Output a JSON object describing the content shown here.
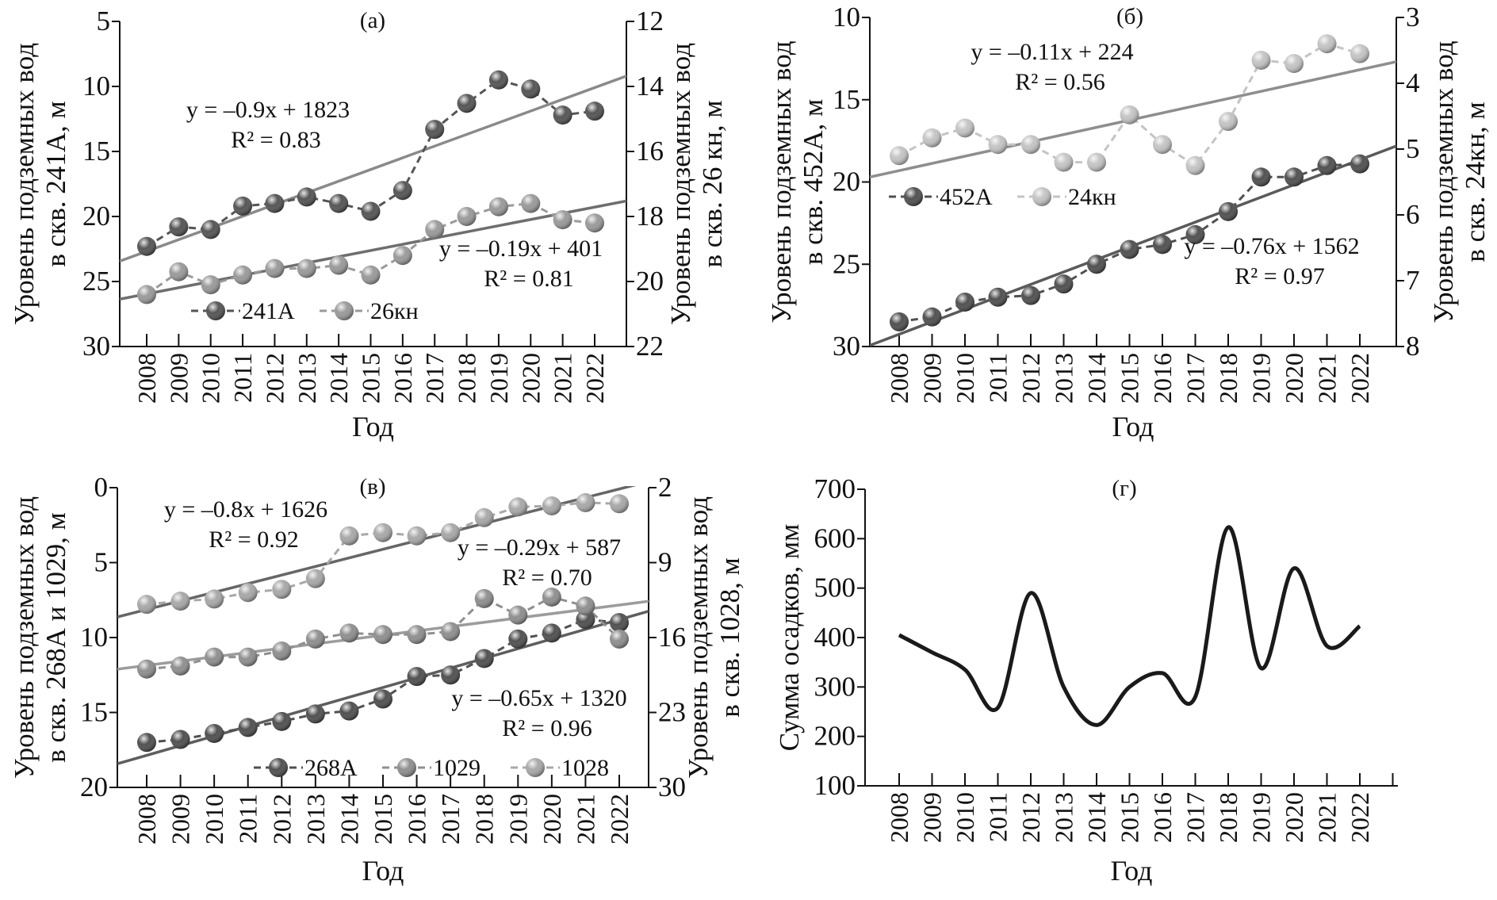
{
  "chart_data": [
    {
      "type": "line",
      "title": "(а)",
      "xlabel": "Год",
      "x": [
        2008,
        2009,
        2010,
        2011,
        2012,
        2013,
        2014,
        2015,
        2016,
        2017,
        2018,
        2019,
        2020,
        2021,
        2022
      ],
      "ylabel_left": [
        "Уровень подземных вод",
        "в скв. 241А, м"
      ],
      "ylabel_right": [
        "Уровень подземных вод",
        "в скв. 26 кн, м"
      ],
      "ylim_left": [
        5,
        30
      ],
      "yticks_left": [
        5,
        10,
        15,
        20,
        25,
        30
      ],
      "y_inverted": true,
      "ylim_right": [
        12,
        22
      ],
      "yticks_right": [
        12,
        14,
        16,
        18,
        20,
        22
      ],
      "series": [
        {
          "name": "241А",
          "axis": "left",
          "color": "#555555",
          "trend_color": "#8a8a8a",
          "values": [
            22.3,
            20.8,
            21.0,
            19.2,
            19.0,
            18.5,
            19.0,
            19.6,
            18.0,
            13.3,
            11.3,
            9.5,
            10.2,
            12.2,
            11.9
          ]
        },
        {
          "name": "26кн",
          "axis": "right",
          "color": "#9a9a9a",
          "trend_color": "#6e6e6e",
          "values": [
            20.4,
            19.7,
            20.1,
            19.8,
            19.6,
            19.6,
            19.5,
            19.8,
            19.2,
            18.4,
            18.0,
            17.7,
            17.6,
            18.1,
            18.2
          ]
        }
      ],
      "annotations": [
        {
          "eq": "y = –0.9x + 1823",
          "r2": "R² = 0.83"
        },
        {
          "eq": "y = –0.19x + 401",
          "r2": "R² = 0.81"
        }
      ],
      "legend": "bottom-left"
    },
    {
      "type": "line",
      "title": "(б)",
      "xlabel": "Год",
      "x": [
        2008,
        2009,
        2010,
        2011,
        2012,
        2013,
        2014,
        2015,
        2016,
        2017,
        2018,
        2019,
        2020,
        2021,
        2022
      ],
      "ylabel_left": [
        "Уровень подземных вод",
        "в скв. 452А, м"
      ],
      "ylabel_right": [
        "Уровень подземных вод",
        "в скв. 24кн, м"
      ],
      "ylim_left": [
        10,
        30
      ],
      "yticks_left": [
        10,
        15,
        20,
        25,
        30
      ],
      "y_inverted": true,
      "ylim_right": [
        3,
        8
      ],
      "yticks_right": [
        3,
        4,
        5,
        6,
        7,
        8
      ],
      "series": [
        {
          "name": "452А",
          "axis": "left",
          "color": "#505050",
          "trend_color": "#5a5a5a",
          "values": [
            28.5,
            28.2,
            27.3,
            27.0,
            26.9,
            26.2,
            25.0,
            24.1,
            23.8,
            23.2,
            21.8,
            19.7,
            19.7,
            19.0,
            18.9
          ]
        },
        {
          "name": "24кн",
          "axis": "right",
          "color": "#c4c4c4",
          "trend_color": "#8e8e8e",
          "values": [
            5.1,
            4.83,
            4.68,
            4.93,
            4.93,
            5.2,
            5.2,
            4.48,
            4.93,
            5.25,
            4.58,
            3.65,
            3.7,
            3.4,
            3.55
          ]
        }
      ],
      "annotations": [
        {
          "eq": "y = –0.76x + 1562",
          "r2": "R² = 0.97"
        },
        {
          "eq": "y = –0.11x + 224",
          "r2": "R² = 0.56"
        }
      ],
      "legend": "middle-left"
    },
    {
      "type": "line",
      "title": "(в)",
      "xlabel": "Год",
      "x": [
        2008,
        2009,
        2010,
        2011,
        2012,
        2013,
        2014,
        2015,
        2016,
        2017,
        2018,
        2019,
        2020,
        2021,
        2022
      ],
      "ylabel_left": [
        "Уровень подземных вод",
        "в скв. 268А и 1029, м"
      ],
      "ylabel_right": [
        "Уровень подземных вод",
        "в скв. 1028, м"
      ],
      "ylim_left": [
        0,
        20
      ],
      "yticks_left": [
        0,
        5,
        10,
        15,
        20
      ],
      "y_inverted": true,
      "ylim_right": [
        2,
        30
      ],
      "yticks_right": [
        2,
        9,
        16,
        23,
        30
      ],
      "series": [
        {
          "name": "268А",
          "axis": "left",
          "color": "#505050",
          "trend_color": "#5e5e5e",
          "values": [
            17.0,
            16.8,
            16.4,
            16.0,
            15.6,
            15.1,
            14.9,
            14.1,
            12.6,
            12.5,
            11.4,
            10.1,
            9.7,
            8.8,
            9.0
          ]
        },
        {
          "name": "1029",
          "axis": "left",
          "color": "#8f8f8f",
          "trend_color": "#9c9c9c",
          "values": [
            12.1,
            11.9,
            11.3,
            11.3,
            10.9,
            10.1,
            9.7,
            9.8,
            9.8,
            9.6,
            7.4,
            8.5,
            7.3,
            7.9,
            10.1
          ]
        },
        {
          "name": "1028",
          "axis": "right",
          "color": "#a8a8a8",
          "trend_color": "#666666",
          "values": [
            12.9,
            12.6,
            12.4,
            11.8,
            11.5,
            10.5,
            6.5,
            6.2,
            6.5,
            6.2,
            4.8,
            3.8,
            3.7,
            3.4,
            3.5
          ]
        }
      ],
      "annotations": [
        {
          "eq": "y = –0.65x + 1320",
          "r2": "R² = 0.96"
        },
        {
          "eq": "y = –0.29x + 587",
          "r2": "R² = 0.70"
        },
        {
          "eq": "y = –0.8x + 1626",
          "r2": "R² = 0.92"
        }
      ],
      "legend": "bottom-right"
    },
    {
      "type": "line",
      "title": "(г)",
      "xlabel": "Год",
      "x": [
        2008,
        2009,
        2010,
        2011,
        2012,
        2013,
        2014,
        2015,
        2016,
        2017,
        2018,
        2019,
        2020,
        2021,
        2022
      ],
      "ylabel_left": [
        "Сумма осадков, мм"
      ],
      "ylim_left": [
        100,
        700
      ],
      "yticks_left": [
        100,
        200,
        300,
        400,
        500,
        600,
        700
      ],
      "y_inverted": false,
      "series": [
        {
          "axis": "left",
          "color": "#1a1a1a",
          "values": [
            405,
            370,
            335,
            258,
            490,
            300,
            223,
            300,
            328,
            280,
            623,
            338,
            540,
            383,
            423
          ]
        }
      ],
      "annotations": [],
      "legend": "none"
    }
  ]
}
